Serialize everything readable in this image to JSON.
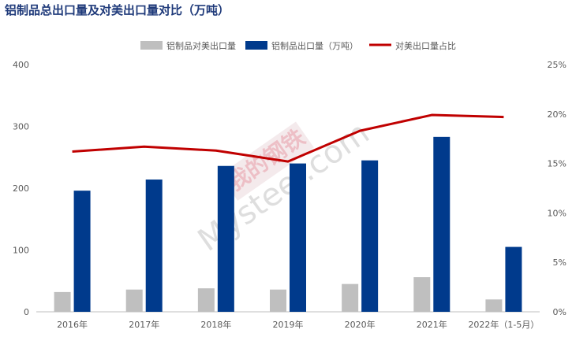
{
  "title": "铝制品总出口量及对美出口量对比（万吨）",
  "watermark": {
    "brand": "我的钢铁",
    "site": "Mysteel.com"
  },
  "chart_data": {
    "type": "bar",
    "categories": [
      "2016年",
      "2017年",
      "2018年",
      "2019年",
      "2020年",
      "2021年",
      "2022年（1-5月）"
    ],
    "series": [
      {
        "name": "铝制品对美出口量",
        "type": "bar",
        "axis": "left",
        "color": "#bfbfbf",
        "values": [
          32,
          36,
          38,
          36,
          45,
          56,
          20
        ]
      },
      {
        "name": "铝制品出口量（万吨）",
        "type": "bar",
        "axis": "left",
        "color": "#003a8c",
        "values": [
          196,
          214,
          236,
          240,
          245,
          283,
          105
        ]
      },
      {
        "name": "对美出口量占比",
        "type": "line",
        "axis": "right",
        "color": "#c00000",
        "values": [
          16.2,
          16.7,
          16.3,
          15.2,
          18.3,
          19.9,
          19.7
        ]
      }
    ],
    "y_left": {
      "min": 0,
      "max": 400,
      "ticks": [
        0,
        100,
        200,
        300,
        400
      ]
    },
    "y_right": {
      "min": 0,
      "max": 25,
      "ticks": [
        "0%",
        "5%",
        "10%",
        "15%",
        "20%",
        "25%"
      ]
    },
    "legend_position": "top-center",
    "grid": false
  }
}
